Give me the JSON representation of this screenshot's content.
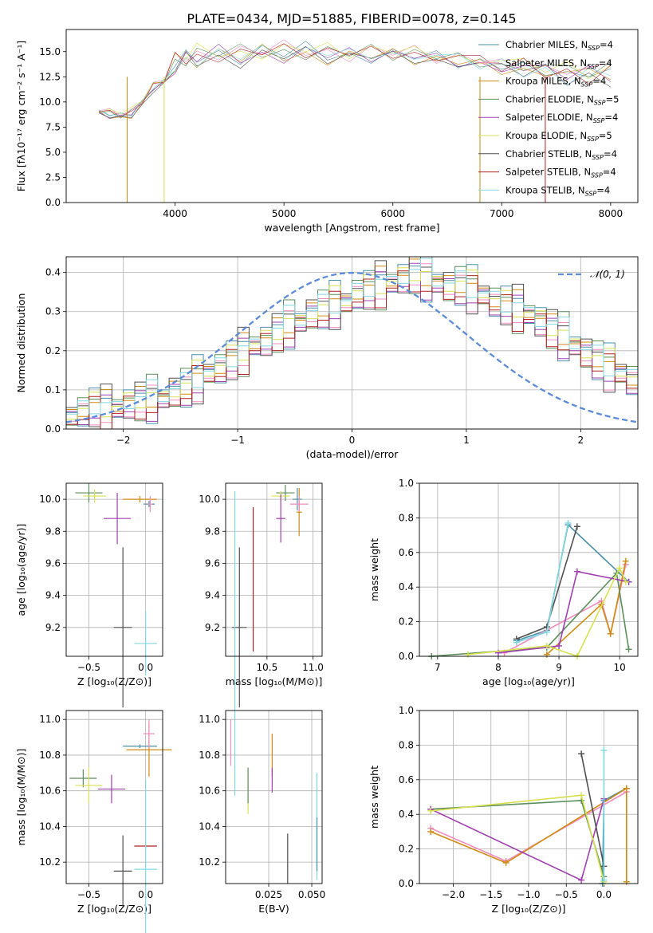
{
  "figure_title": "PLATE=0434, MJD=51885, FIBERID=0078, z=0.145",
  "models": [
    {
      "label": "Chabrier MILES, N",
      "sub": "SSP",
      "tail": "=4",
      "color": "#4a8fa8"
    },
    {
      "label": "Salpeter MILES, N",
      "sub": "SSP",
      "tail": "=4",
      "color": "#f08cc0"
    },
    {
      "label": "Kroupa MILES, N",
      "sub": "SSP",
      "tail": "=4",
      "color": "#d08a10"
    },
    {
      "label": "Chabrier ELODIE, N",
      "sub": "SSP",
      "tail": "=5",
      "color": "#5a8f5a"
    },
    {
      "label": "Salpeter ELODIE, N",
      "sub": "SSP",
      "tail": "=4",
      "color": "#a040b0"
    },
    {
      "label": "Kroupa ELODIE, N",
      "sub": "SSP",
      "tail": "=5",
      "color": "#d8e050"
    },
    {
      "label": "Chabrier STELIB, N",
      "sub": "SSP",
      "tail": "=4",
      "color": "#505050"
    },
    {
      "label": "Salpeter STELIB, N",
      "sub": "SSP",
      "tail": "=4",
      "color": "#b02020"
    },
    {
      "label": "Kroupa STELIB, N",
      "sub": "SSP",
      "tail": "=4",
      "color": "#80d8e0"
    }
  ],
  "chart_data": [
    {
      "type": "line",
      "id": "spectrum",
      "xlabel": "wavelength [Angstrom, rest frame]",
      "ylabel": "Flux [fλ10⁻¹⁷ erg cm⁻² s⁻¹ A⁻¹]",
      "xlim": [
        3000,
        8250
      ],
      "ylim": [
        0,
        17.2
      ],
      "xticks": [
        "4000",
        "5000",
        "6000",
        "7000",
        "8000"
      ],
      "yticks": [
        "0.0",
        "2.5",
        "5.0",
        "7.5",
        "10.0",
        "12.5",
        "15.0"
      ],
      "x": [
        3300,
        3400,
        3500,
        3600,
        3700,
        3800,
        3900,
        4000,
        4100,
        4200,
        4400,
        4600,
        4800,
        5000,
        5200,
        5400,
        5600,
        5800,
        6000,
        6200,
        6400,
        6600,
        6800,
        7000,
        7200,
        7400,
        7600,
        7800,
        8000
      ],
      "y": [
        9.0,
        8.8,
        8.6,
        8.9,
        10.0,
        11.5,
        12.0,
        13.8,
        14.3,
        14.5,
        14.8,
        14.6,
        14.9,
        14.9,
        15.0,
        14.8,
        14.7,
        14.8,
        14.7,
        14.6,
        14.3,
        14.1,
        13.8,
        13.4,
        13.3,
        13.1,
        12.8,
        12.8,
        12.9
      ]
    },
    {
      "type": "area",
      "id": "residuals",
      "xlabel": "(data-model)/error",
      "ylabel": "Normed distribution",
      "legend": "𝒩(0, 1)",
      "xlim": [
        -2.5,
        2.5
      ],
      "ylim": [
        0,
        0.44
      ],
      "xticks": [
        "−2",
        "−1",
        "0",
        "1",
        "2"
      ],
      "yticks": [
        "0.0",
        "0.1",
        "0.2",
        "0.3",
        "0.4"
      ],
      "bin_width": 0.1,
      "bin_start": -2.5,
      "values": [
        0.03,
        0.04,
        0.05,
        0.045,
        0.05,
        0.06,
        0.065,
        0.07,
        0.075,
        0.09,
        0.1,
        0.12,
        0.14,
        0.15,
        0.17,
        0.19,
        0.21,
        0.22,
        0.24,
        0.26,
        0.27,
        0.29,
        0.3,
        0.31,
        0.32,
        0.34,
        0.35,
        0.36,
        0.37,
        0.38,
        0.39,
        0.38,
        0.37,
        0.36,
        0.36,
        0.35,
        0.34,
        0.32,
        0.31,
        0.3,
        0.29,
        0.27,
        0.25,
        0.23,
        0.21,
        0.19,
        0.17,
        0.15,
        0.14,
        0.12,
        0.1
      ]
    },
    {
      "type": "scatter",
      "id": "age-Z",
      "xlabel": "Z [log₁₀(Z/Z⊙)]",
      "ylabel": "age  [log₁₀(age/yr)]",
      "xlim": [
        -0.7,
        0.15
      ],
      "ylim": [
        9.02,
        10.1
      ],
      "xticks": [
        "−0.5",
        "0.0"
      ],
      "yticks": [
        "9.2",
        "9.4",
        "9.6",
        "9.8",
        "10.0"
      ]
    },
    {
      "type": "scatter",
      "id": "age-mass",
      "xlabel": "mass [log₁₀(M/M⊙)]",
      "ylabel": "",
      "xlim": [
        10.05,
        11.1
      ],
      "ylim": [
        9.02,
        10.1
      ],
      "xticks": [
        "10.5",
        "11.0"
      ],
      "yticks": [
        "9.2",
        "9.4",
        "9.6",
        "9.8",
        "10.0"
      ]
    },
    {
      "type": "line",
      "id": "weight-age",
      "xlabel": "age  [log₁₀(age/yr)]",
      "ylabel": "mass weight",
      "xlim": [
        6.7,
        10.3
      ],
      "ylim": [
        0,
        1
      ],
      "xticks": [
        "7",
        "8",
        "9",
        "10"
      ],
      "yticks": [
        "0.0",
        "0.2",
        "0.4",
        "0.6",
        "0.8",
        "1.0"
      ]
    },
    {
      "type": "scatter",
      "id": "mass-Z",
      "xlabel": "Z [log₁₀(Z/Z⊙)]",
      "ylabel": "mass [log₁₀(M/M⊙)]",
      "xlim": [
        -0.7,
        0.15
      ],
      "ylim": [
        10.08,
        11.05
      ],
      "xticks": [
        "−0.5",
        "0.0"
      ],
      "yticks": [
        "10.2",
        "10.4",
        "10.6",
        "10.8",
        "11.0"
      ]
    },
    {
      "type": "scatter",
      "id": "mass-EBV",
      "xlabel": "E(B-V)",
      "ylabel": "",
      "xlim": [
        0.0,
        0.056
      ],
      "ylim": [
        10.08,
        11.05
      ],
      "xticks": [
        "0.025",
        "0.050"
      ],
      "yticks": [
        "10.2",
        "10.4",
        "10.6",
        "10.8",
        "11.0"
      ]
    },
    {
      "type": "line",
      "id": "weight-Z",
      "xlabel": "Z [log₁₀(Z/Z⊙)]",
      "ylabel": "mass weight",
      "xlim": [
        -2.45,
        0.45
      ],
      "ylim": [
        0,
        1
      ],
      "xticks": [
        "−2.0",
        "−1.5",
        "−1.0",
        "−0.5",
        "0.0"
      ],
      "yticks": [
        "0.0",
        "0.2",
        "0.4",
        "0.6",
        "0.8",
        "1.0"
      ]
    }
  ],
  "age_weights": [
    {
      "model": 0,
      "pts": [
        [
          8.3,
          0.09
        ],
        [
          8.8,
          0.15
        ],
        [
          9.15,
          0.76
        ],
        [
          10.15,
          0.43
        ]
      ]
    },
    {
      "model": 1,
      "pts": [
        [
          8.1,
          0.02
        ],
        [
          9.7,
          0.32
        ],
        [
          9.85,
          0.13
        ],
        [
          10.1,
          0.53
        ]
      ]
    },
    {
      "model": 2,
      "pts": [
        [
          8.8,
          0.01
        ],
        [
          9.7,
          0.3
        ],
        [
          9.85,
          0.13
        ],
        [
          10.1,
          0.55
        ]
      ]
    },
    {
      "model": 3,
      "pts": [
        [
          6.9,
          0.0
        ],
        [
          8.8,
          0.05
        ],
        [
          9.95,
          0.48
        ],
        [
          10.15,
          0.04
        ]
      ]
    },
    {
      "model": 4,
      "pts": [
        [
          8.0,
          0.02
        ],
        [
          9.0,
          0.06
        ],
        [
          9.3,
          0.49
        ],
        [
          10.15,
          0.43
        ]
      ]
    },
    {
      "model": 5,
      "pts": [
        [
          7.5,
          0.01
        ],
        [
          8.8,
          0.06
        ],
        [
          9.3,
          0.0
        ],
        [
          10.0,
          0.51
        ],
        [
          10.1,
          0.43
        ]
      ]
    },
    {
      "model": 6,
      "pts": [
        [
          8.3,
          0.1
        ],
        [
          8.8,
          0.17
        ],
        [
          9.3,
          0.75
        ]
      ]
    },
    {
      "model": 8,
      "pts": [
        [
          8.3,
          0.08
        ],
        [
          8.8,
          0.14
        ],
        [
          9.15,
          0.77
        ]
      ]
    }
  ],
  "z_weights": [
    {
      "model": 0,
      "pts": [
        [
          -0.02,
          0.0
        ],
        [
          0.0,
          0.48
        ],
        [
          0.3,
          0.55
        ]
      ]
    },
    {
      "model": 1,
      "pts": [
        [
          -2.3,
          0.32
        ],
        [
          -1.3,
          0.13
        ],
        [
          0.3,
          0.53
        ]
      ]
    },
    {
      "model": 2,
      "pts": [
        [
          -2.3,
          0.3
        ],
        [
          -1.3,
          0.12
        ],
        [
          0.3,
          0.55
        ],
        [
          0.3,
          0.01
        ]
      ]
    },
    {
      "model": 3,
      "pts": [
        [
          -2.3,
          0.43
        ],
        [
          -0.3,
          0.48
        ],
        [
          0.0,
          0.04
        ]
      ]
    },
    {
      "model": 4,
      "pts": [
        [
          -2.3,
          0.43
        ],
        [
          -0.3,
          0.02
        ],
        [
          0.0,
          0.49
        ]
      ]
    },
    {
      "model": 5,
      "pts": [
        [
          -2.3,
          0.42
        ],
        [
          -0.3,
          0.51
        ],
        [
          0.0,
          0.01
        ]
      ]
    },
    {
      "model": 6,
      "pts": [
        [
          -0.3,
          0.75
        ],
        [
          0.0,
          0.1
        ]
      ]
    },
    {
      "model": 8,
      "pts": [
        [
          0.0,
          0.77
        ],
        [
          0.0,
          0.02
        ]
      ]
    }
  ],
  "age_z_points": [
    {
      "model": 0,
      "x": 0.03,
      "y": 9.97,
      "ex": 0.05,
      "ey": 0.02
    },
    {
      "model": 2,
      "x": -0.05,
      "y": 10.0,
      "ex": 0.15,
      "ey": 0.02
    },
    {
      "model": 3,
      "x": -0.5,
      "y": 10.04,
      "ex": 0.12,
      "ey": 0.06
    },
    {
      "model": 5,
      "x": -0.45,
      "y": 10.02,
      "ex": 0.1,
      "ey": 0.04
    },
    {
      "model": 4,
      "x": -0.25,
      "y": 9.88,
      "ex": 0.12,
      "ey": 0.16
    },
    {
      "model": 6,
      "x": -0.2,
      "y": 9.2,
      "ex": 0.08,
      "ey": 0.5
    },
    {
      "model": 8,
      "x": 0.0,
      "y": 9.1,
      "ex": 0.1,
      "ey": 0.2
    },
    {
      "model": 1,
      "x": 0.04,
      "y": 9.97,
      "ex": 0.02,
      "ey": 0.05
    }
  ],
  "age_mass_points": [
    {
      "model": 0,
      "x": 10.83,
      "y": 10.0,
      "ex": 0.05,
      "ey": 0.07
    },
    {
      "model": 2,
      "x": 10.85,
      "y": 9.92,
      "ex": 0.03,
      "ey": 0.15
    },
    {
      "model": 3,
      "x": 10.7,
      "y": 10.04,
      "ex": 0.1,
      "ey": 0.05
    },
    {
      "model": 5,
      "x": 10.65,
      "y": 10.02,
      "ex": 0.1,
      "ey": 0.03
    },
    {
      "model": 4,
      "x": 10.65,
      "y": 9.88,
      "ex": 0.05,
      "ey": 0.15
    },
    {
      "model": 6,
      "x": 10.2,
      "y": 9.2,
      "ex": 0.08,
      "ey": 0.5
    },
    {
      "model": 7,
      "x": 10.35,
      "y": 9.5,
      "ex": 0.0,
      "ey": 0.45
    },
    {
      "model": 8,
      "x": 10.15,
      "y": 9.1,
      "ex": 0.0,
      "ey": 0.95
    },
    {
      "model": 1,
      "x": 10.85,
      "y": 9.97,
      "ex": 0.1,
      "ey": 0.05
    }
  ],
  "mass_z_points": [
    {
      "model": 0,
      "x": -0.05,
      "y": 10.85,
      "ex": 0.15,
      "ey": 0.01
    },
    {
      "model": 2,
      "x": 0.03,
      "y": 10.83,
      "ex": 0.2,
      "ey": 0.15
    },
    {
      "model": 3,
      "x": -0.55,
      "y": 10.67,
      "ex": 0.12,
      "ey": 0.05
    },
    {
      "model": 5,
      "x": -0.5,
      "y": 10.63,
      "ex": 0.12,
      "ey": 0.1
    },
    {
      "model": 4,
      "x": -0.3,
      "y": 10.61,
      "ex": 0.12,
      "ey": 0.08
    },
    {
      "model": 6,
      "x": -0.2,
      "y": 10.15,
      "ex": 0.08,
      "ey": 0.2
    },
    {
      "model": 7,
      "x": 0.0,
      "y": 10.29,
      "ex": 0.1,
      "ey": 0.0
    },
    {
      "model": 8,
      "x": 0.0,
      "y": 10.16,
      "ex": 0.1,
      "ey": 0.5
    },
    {
      "model": 1,
      "x": 0.03,
      "y": 10.92,
      "ex": 0.05,
      "ey": 0.08
    }
  ],
  "mass_ebv_points": [
    {
      "model": 1,
      "x": 0.003,
      "y": 10.87,
      "ey": 0.13
    },
    {
      "model": 5,
      "x": 0.013,
      "y": 10.59,
      "ey": 0.12
    },
    {
      "model": 3,
      "x": 0.013,
      "y": 10.63,
      "ey": 0.1
    },
    {
      "model": 2,
      "x": 0.027,
      "y": 10.8,
      "ey": 0.12
    },
    {
      "model": 4,
      "x": 0.027,
      "y": 10.66,
      "ey": 0.07
    },
    {
      "model": 6,
      "x": 0.036,
      "y": 10.22,
      "ey": 0.14
    },
    {
      "model": 8,
      "x": 0.053,
      "y": 10.4,
      "ey": 0.3
    },
    {
      "model": 0,
      "x": 0.053,
      "y": 10.3,
      "ey": 0.15
    }
  ]
}
